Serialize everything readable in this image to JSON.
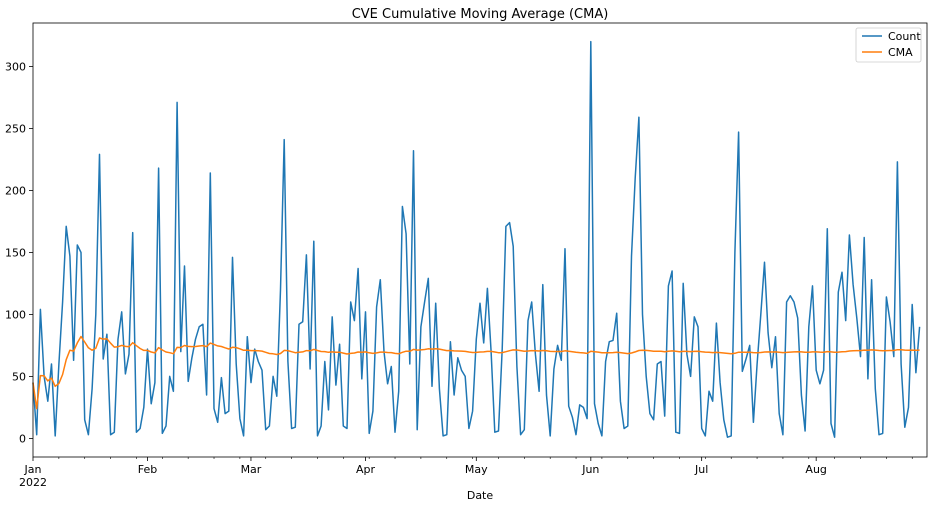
{
  "chart_data": {
    "type": "line",
    "title": "CVE Cumulative Moving Average (CMA)",
    "xlabel": "Date",
    "ylabel": "",
    "x_start": "2022-01-01",
    "x_end": "2022-08-31",
    "ylim": [
      -15,
      335
    ],
    "yticks": [
      0,
      50,
      100,
      150,
      200,
      250,
      300
    ],
    "xticks": [
      {
        "date": "2022-01-01",
        "label": "Jan",
        "sublabel": "2022"
      },
      {
        "date": "2022-02-01",
        "label": "Feb",
        "sublabel": ""
      },
      {
        "date": "2022-03-01",
        "label": "Mar",
        "sublabel": ""
      },
      {
        "date": "2022-04-01",
        "label": "Apr",
        "sublabel": ""
      },
      {
        "date": "2022-05-01",
        "label": "May",
        "sublabel": ""
      },
      {
        "date": "2022-06-01",
        "label": "Jun",
        "sublabel": ""
      },
      {
        "date": "2022-07-01",
        "label": "Jul",
        "sublabel": ""
      },
      {
        "date": "2022-08-01",
        "label": "Aug",
        "sublabel": ""
      }
    ],
    "grid": false,
    "legend_position": "top-right",
    "series": [
      {
        "name": "Count",
        "color": "#1f77b4",
        "values": [
          45,
          3,
          104,
          50,
          30,
          60,
          2,
          60,
          110,
          171,
          147,
          63,
          156,
          150,
          15,
          3,
          40,
          100,
          229,
          64,
          84,
          3,
          5,
          80,
          102,
          52,
          68,
          166,
          5,
          8,
          25,
          72,
          28,
          45,
          218,
          4,
          10,
          50,
          38,
          271,
          70,
          139,
          46,
          65,
          80,
          90,
          92,
          35,
          214,
          24,
          13,
          49,
          20,
          22,
          146,
          60,
          16,
          2,
          82,
          45,
          72,
          62,
          55,
          7,
          10,
          50,
          34,
          120,
          241,
          62,
          8,
          9,
          92,
          94,
          148,
          56,
          159,
          2,
          10,
          62,
          23,
          98,
          43,
          76,
          10,
          8,
          110,
          95,
          137,
          48,
          102,
          4,
          22,
          106,
          128,
          70,
          44,
          58,
          5,
          38,
          187,
          165,
          60,
          232,
          7,
          90,
          110,
          129,
          42,
          109,
          40,
          2,
          3,
          78,
          35,
          65,
          55,
          50,
          8,
          22,
          80,
          109,
          77,
          121,
          70,
          5,
          6,
          72,
          171,
          174,
          155,
          58,
          3,
          7,
          95,
          110,
          68,
          38,
          124,
          35,
          2,
          56,
          75,
          63,
          153,
          26,
          17,
          3,
          27,
          25,
          16,
          320,
          28,
          12,
          2,
          62,
          78,
          79,
          101,
          30,
          8,
          10,
          147,
          210,
          259,
          100,
          50,
          20,
          15,
          60,
          62,
          18,
          123,
          135,
          5,
          4,
          125,
          68,
          50,
          98,
          90,
          8,
          2,
          38,
          30,
          93,
          45,
          15,
          1,
          2,
          150,
          247,
          54,
          64,
          75,
          13,
          60,
          100,
          142,
          85,
          57,
          82,
          20,
          3,
          110,
          115,
          110,
          97,
          35,
          6,
          90,
          123,
          55,
          44,
          55,
          169,
          12,
          1,
          118,
          134,
          95,
          164,
          124,
          97,
          66,
          162,
          48,
          128,
          40,
          3,
          4,
          114,
          94,
          66,
          223,
          60,
          9,
          25,
          108,
          53,
          90
        ]
      },
      {
        "name": "CMA",
        "color": "#ff7f0e",
        "values": []
      }
    ]
  }
}
